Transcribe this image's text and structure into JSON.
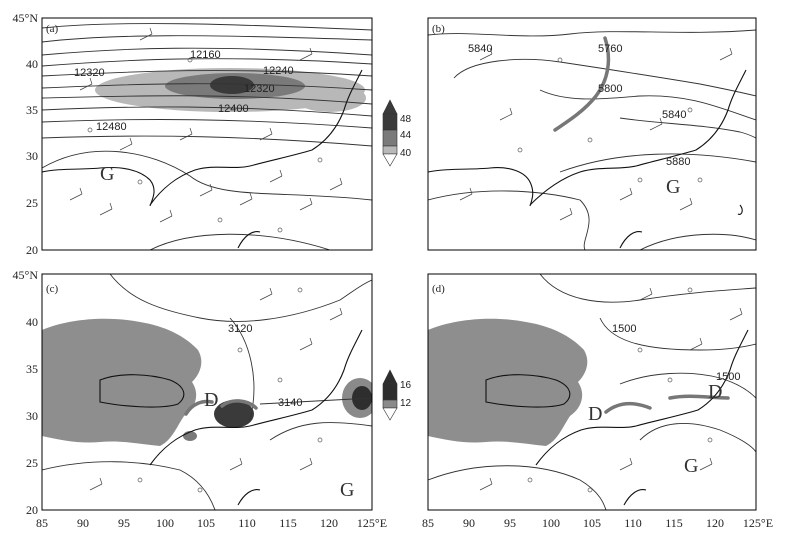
{
  "axes": {
    "lon_ticks": [
      "85",
      "90",
      "95",
      "100",
      "105",
      "110",
      "115",
      "120",
      "125°E"
    ],
    "lat_ticks": [
      "20",
      "25",
      "30",
      "35",
      "40",
      "45°N"
    ]
  },
  "panels": [
    {
      "id": "a",
      "label": "(a)",
      "contour_labels": [
        "12160",
        "12240",
        "12320",
        "12320",
        "12400",
        "12480"
      ],
      "symbols": [
        "G"
      ],
      "colorbar": {
        "ticks": [
          "48",
          "44",
          "40"
        ],
        "colors": [
          "#3a3a3a",
          "#7a7a7a",
          "#b8b8b8"
        ]
      }
    },
    {
      "id": "b",
      "label": "(b)",
      "contour_labels": [
        "5840",
        "5760",
        "5800",
        "5840",
        "5880"
      ],
      "symbols": [
        "G"
      ]
    },
    {
      "id": "c",
      "label": "(c)",
      "contour_labels": [
        "3120",
        "3140"
      ],
      "symbols": [
        "D",
        "G"
      ],
      "colorbar": {
        "ticks": [
          "16",
          "12"
        ],
        "colors": [
          "#2e2e2e",
          "#8a8a8a"
        ]
      }
    },
    {
      "id": "d",
      "label": "(d)",
      "contour_labels": [
        "1500",
        "1500"
      ],
      "symbols": [
        "D",
        "D",
        "G"
      ]
    }
  ],
  "colors": {
    "plateau": "#8e8e8e",
    "trough": "#777777"
  }
}
